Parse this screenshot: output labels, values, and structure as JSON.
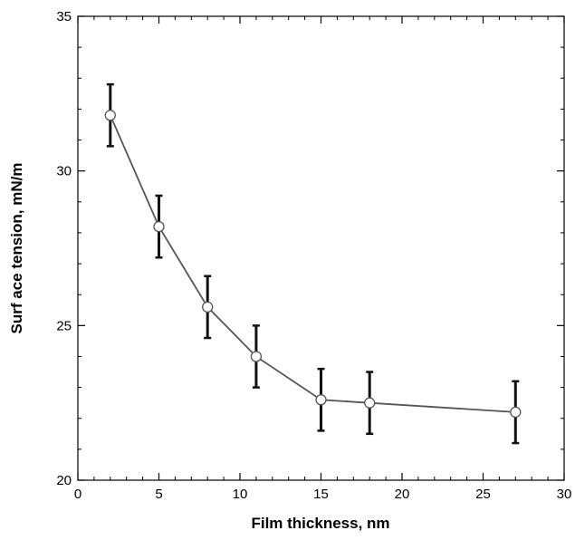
{
  "chart_data": {
    "type": "line",
    "xlabel": "Film thickness, nm",
    "ylabel": "Surf ace tension, mN/m",
    "xlim": [
      0,
      30
    ],
    "ylim": [
      20,
      35
    ],
    "x_ticks": [
      0,
      5,
      10,
      15,
      20,
      25,
      30
    ],
    "y_ticks": [
      20,
      25,
      30,
      35
    ],
    "grid": false,
    "series": [
      {
        "x": [
          2,
          5,
          8,
          11,
          15,
          18,
          27
        ],
        "y": [
          31.8,
          28.2,
          25.6,
          24.0,
          22.6,
          22.5,
          22.2
        ],
        "error": [
          1.0,
          1.0,
          1.0,
          1.0,
          1.0,
          1.0,
          1.0
        ],
        "marker": "open-circle",
        "color": "#555555"
      }
    ]
  }
}
